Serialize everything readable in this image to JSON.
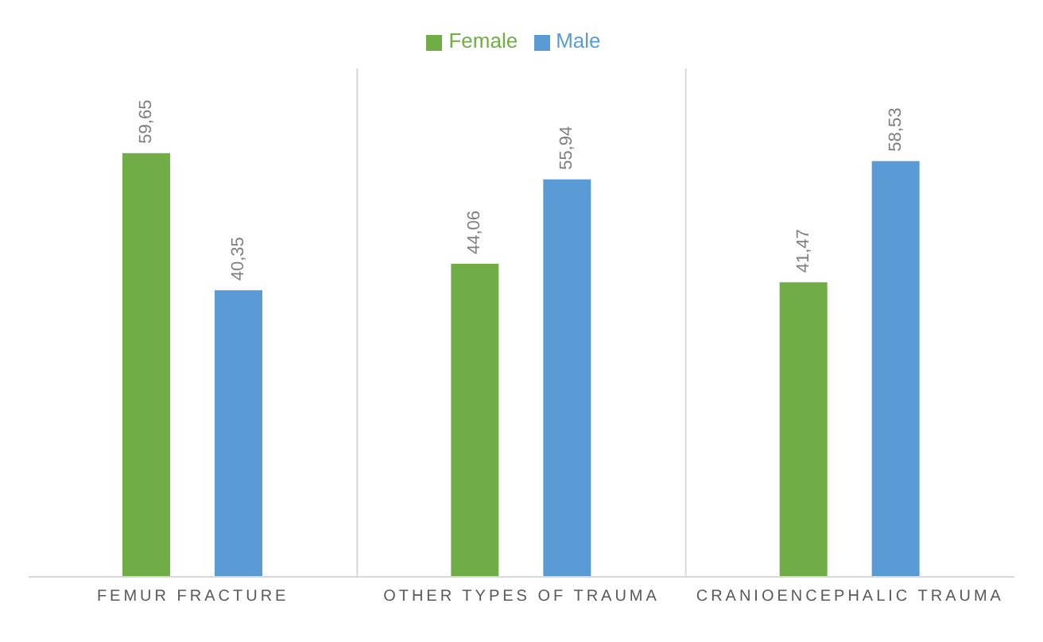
{
  "chart_data": {
    "type": "bar",
    "categories": [
      "FEMUR FRACTURE",
      "OTHER TYPES OF TRAUMA",
      "CRANIOENCEPHALIC TRAUMA"
    ],
    "series": [
      {
        "name": "Female",
        "color": "#70ad47",
        "values": [
          59.65,
          44.06,
          41.47
        ],
        "value_labels": [
          "59,65",
          "44,06",
          "41,47"
        ]
      },
      {
        "name": "Male",
        "color": "#5b9bd5",
        "values": [
          40.35,
          55.94,
          58.53
        ],
        "value_labels": [
          "40,35",
          "55,94",
          "58,53"
        ]
      }
    ],
    "legend": "top",
    "grid": "x"
  }
}
